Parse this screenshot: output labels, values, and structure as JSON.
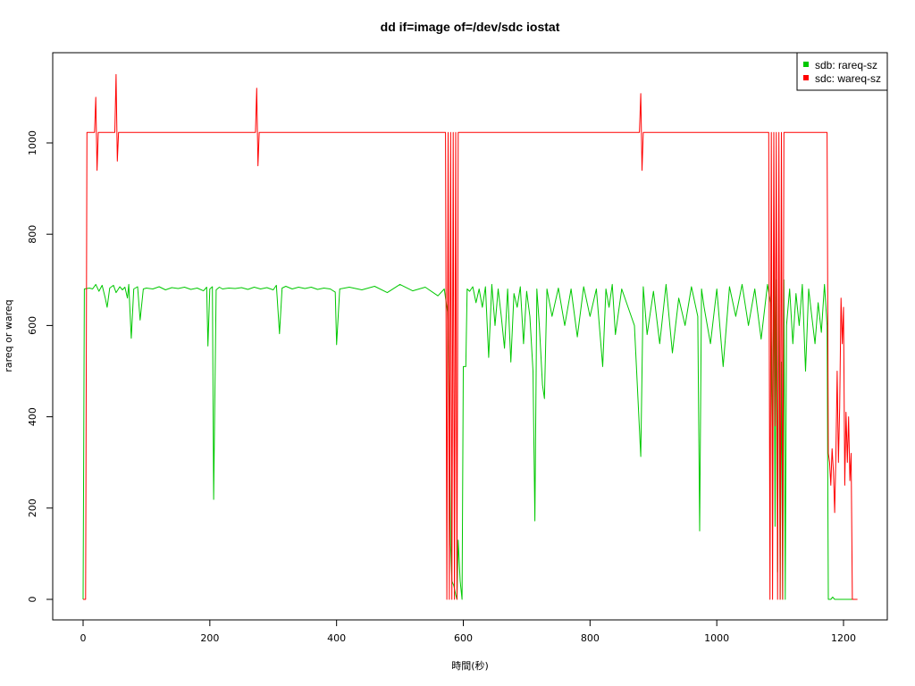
{
  "chart_data": {
    "type": "line",
    "title": "dd if=image of=/dev/sdc iostat",
    "xlabel": "時間(秒)",
    "ylabel": "rareq or wareq",
    "xlim": [
      0,
      1230
    ],
    "ylim": [
      0,
      1150
    ],
    "x_ticks": [
      0,
      200,
      400,
      600,
      800,
      1000,
      1200
    ],
    "y_ticks": [
      0,
      200,
      400,
      600,
      800,
      1000
    ],
    "grid": false,
    "legend_position": "top-right",
    "series": [
      {
        "name": "sdb: rareq-sz",
        "color": "#00c800",
        "points": [
          [
            0,
            0
          ],
          [
            2,
            680
          ],
          [
            10,
            682
          ],
          [
            15,
            680
          ],
          [
            20,
            690
          ],
          [
            25,
            675
          ],
          [
            30,
            688
          ],
          [
            35,
            660
          ],
          [
            38,
            640
          ],
          [
            42,
            682
          ],
          [
            48,
            688
          ],
          [
            52,
            672
          ],
          [
            58,
            685
          ],
          [
            62,
            678
          ],
          [
            66,
            684
          ],
          [
            70,
            660
          ],
          [
            72,
            690
          ],
          [
            76,
            572
          ],
          [
            80,
            680
          ],
          [
            86,
            685
          ],
          [
            90,
            612
          ],
          [
            95,
            680
          ],
          [
            100,
            682
          ],
          [
            110,
            680
          ],
          [
            120,
            685
          ],
          [
            130,
            678
          ],
          [
            140,
            683
          ],
          [
            150,
            681
          ],
          [
            160,
            684
          ],
          [
            170,
            679
          ],
          [
            180,
            682
          ],
          [
            190,
            676
          ],
          [
            195,
            684
          ],
          [
            197,
            555
          ],
          [
            200,
            680
          ],
          [
            204,
            685
          ],
          [
            206,
            219
          ],
          [
            210,
            678
          ],
          [
            215,
            684
          ],
          [
            220,
            680
          ],
          [
            230,
            682
          ],
          [
            240,
            681
          ],
          [
            250,
            683
          ],
          [
            260,
            679
          ],
          [
            270,
            684
          ],
          [
            280,
            680
          ],
          [
            290,
            683
          ],
          [
            300,
            678
          ],
          [
            305,
            688
          ],
          [
            310,
            582
          ],
          [
            314,
            682
          ],
          [
            320,
            686
          ],
          [
            330,
            680
          ],
          [
            340,
            684
          ],
          [
            350,
            681
          ],
          [
            360,
            684
          ],
          [
            370,
            679
          ],
          [
            380,
            682
          ],
          [
            390,
            680
          ],
          [
            398,
            673
          ],
          [
            400,
            558
          ],
          [
            405,
            680
          ],
          [
            420,
            684
          ],
          [
            440,
            678
          ],
          [
            460,
            686
          ],
          [
            480,
            672
          ],
          [
            500,
            690
          ],
          [
            520,
            676
          ],
          [
            540,
            684
          ],
          [
            560,
            665
          ],
          [
            570,
            680
          ],
          [
            575,
            630
          ],
          [
            578,
            400
          ],
          [
            580,
            120
          ],
          [
            582,
            40
          ],
          [
            585,
            30
          ],
          [
            588,
            10
          ],
          [
            590,
            0
          ],
          [
            592,
            130
          ],
          [
            595,
            40
          ],
          [
            598,
            0
          ],
          [
            600,
            510
          ],
          [
            604,
            510
          ],
          [
            606,
            680
          ],
          [
            610,
            675
          ],
          [
            615,
            685
          ],
          [
            620,
            650
          ],
          [
            625,
            680
          ],
          [
            630,
            640
          ],
          [
            635,
            685
          ],
          [
            640,
            530
          ],
          [
            645,
            690
          ],
          [
            650,
            600
          ],
          [
            655,
            680
          ],
          [
            660,
            620
          ],
          [
            665,
            550
          ],
          [
            670,
            680
          ],
          [
            675,
            520
          ],
          [
            680,
            670
          ],
          [
            685,
            640
          ],
          [
            690,
            685
          ],
          [
            695,
            560
          ],
          [
            700,
            675
          ],
          [
            705,
            620
          ],
          [
            710,
            500
          ],
          [
            713,
            172
          ],
          [
            716,
            680
          ],
          [
            720,
            600
          ],
          [
            725,
            470
          ],
          [
            728,
            440
          ],
          [
            732,
            680
          ],
          [
            740,
            620
          ],
          [
            750,
            682
          ],
          [
            760,
            600
          ],
          [
            770,
            680
          ],
          [
            780,
            575
          ],
          [
            790,
            685
          ],
          [
            800,
            620
          ],
          [
            810,
            680
          ],
          [
            820,
            510
          ],
          [
            825,
            680
          ],
          [
            830,
            640
          ],
          [
            835,
            690
          ],
          [
            840,
            580
          ],
          [
            850,
            680
          ],
          [
            860,
            640
          ],
          [
            870,
            600
          ],
          [
            880,
            313
          ],
          [
            884,
            685
          ],
          [
            890,
            580
          ],
          [
            900,
            675
          ],
          [
            910,
            560
          ],
          [
            920,
            690
          ],
          [
            930,
            540
          ],
          [
            940,
            660
          ],
          [
            950,
            600
          ],
          [
            960,
            685
          ],
          [
            970,
            620
          ],
          [
            973,
            150
          ],
          [
            976,
            680
          ],
          [
            980,
            640
          ],
          [
            990,
            560
          ],
          [
            1000,
            680
          ],
          [
            1010,
            510
          ],
          [
            1020,
            685
          ],
          [
            1030,
            620
          ],
          [
            1040,
            690
          ],
          [
            1050,
            600
          ],
          [
            1060,
            680
          ],
          [
            1070,
            570
          ],
          [
            1080,
            690
          ],
          [
            1085,
            650
          ],
          [
            1088,
            270
          ],
          [
            1090,
            770
          ],
          [
            1092,
            160
          ],
          [
            1094,
            700
          ],
          [
            1096,
            60
          ],
          [
            1098,
            770
          ],
          [
            1100,
            0
          ],
          [
            1102,
            520
          ],
          [
            1104,
            0
          ],
          [
            1106,
            700
          ],
          [
            1108,
            0
          ],
          [
            1110,
            600
          ],
          [
            1115,
            680
          ],
          [
            1120,
            560
          ],
          [
            1125,
            670
          ],
          [
            1130,
            600
          ],
          [
            1135,
            690
          ],
          [
            1140,
            500
          ],
          [
            1145,
            680
          ],
          [
            1150,
            620
          ],
          [
            1155,
            560
          ],
          [
            1160,
            650
          ],
          [
            1165,
            585
          ],
          [
            1170,
            690
          ],
          [
            1174,
            600
          ],
          [
            1176,
            0
          ],
          [
            1180,
            0
          ],
          [
            1183,
            5
          ],
          [
            1186,
            0
          ],
          [
            1200,
            0
          ],
          [
            1220,
            0
          ]
        ]
      },
      {
        "name": "sdc: wareq-sz",
        "color": "#ff0000",
        "points": [
          [
            0,
            0
          ],
          [
            4,
            0
          ],
          [
            6,
            1023
          ],
          [
            18,
            1023
          ],
          [
            20,
            1100
          ],
          [
            22,
            940
          ],
          [
            24,
            1023
          ],
          [
            50,
            1023
          ],
          [
            52,
            1150
          ],
          [
            54,
            960
          ],
          [
            56,
            1023
          ],
          [
            272,
            1023
          ],
          [
            274,
            1120
          ],
          [
            276,
            950
          ],
          [
            278,
            1023
          ],
          [
            572,
            1023
          ],
          [
            574,
            0
          ],
          [
            576,
            1023
          ],
          [
            578,
            0
          ],
          [
            580,
            1023
          ],
          [
            582,
            0
          ],
          [
            584,
            1023
          ],
          [
            586,
            0
          ],
          [
            588,
            1023
          ],
          [
            590,
            0
          ],
          [
            592,
            1023
          ],
          [
            878,
            1023
          ],
          [
            880,
            1108
          ],
          [
            882,
            940
          ],
          [
            884,
            1023
          ],
          [
            1082,
            1023
          ],
          [
            1084,
            0
          ],
          [
            1086,
            1023
          ],
          [
            1088,
            0
          ],
          [
            1090,
            1023
          ],
          [
            1092,
            380
          ],
          [
            1094,
            1023
          ],
          [
            1096,
            0
          ],
          [
            1098,
            1023
          ],
          [
            1100,
            0
          ],
          [
            1102,
            1023
          ],
          [
            1104,
            0
          ],
          [
            1106,
            1023
          ],
          [
            1174,
            1023
          ],
          [
            1176,
            320
          ],
          [
            1178,
            300
          ],
          [
            1180,
            250
          ],
          [
            1182,
            330
          ],
          [
            1184,
            280
          ],
          [
            1186,
            190
          ],
          [
            1188,
            320
          ],
          [
            1190,
            500
          ],
          [
            1192,
            300
          ],
          [
            1194,
            420
          ],
          [
            1196,
            660
          ],
          [
            1198,
            560
          ],
          [
            1200,
            640
          ],
          [
            1202,
            250
          ],
          [
            1204,
            410
          ],
          [
            1206,
            300
          ],
          [
            1208,
            400
          ],
          [
            1210,
            260
          ],
          [
            1212,
            320
          ],
          [
            1214,
            0
          ],
          [
            1222,
            0
          ]
        ]
      }
    ]
  }
}
